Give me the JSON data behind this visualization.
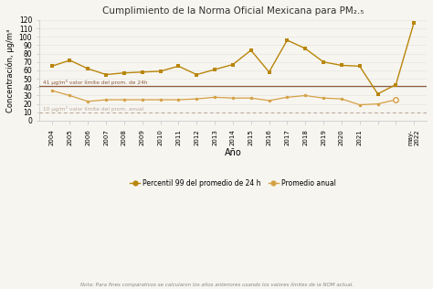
{
  "title": "Cumplimiento de la Norma Oficial Mexicana para PM₂.₅",
  "xlabel": "Año",
  "ylabel": "Concentración, μg/m³",
  "p99_y": [
    65,
    72,
    62,
    55,
    57,
    58,
    59,
    65,
    55,
    61,
    67,
    84,
    58,
    96,
    86,
    70,
    66,
    65,
    32,
    43,
    117
  ],
  "annual_y": [
    36,
    30,
    23,
    25,
    25,
    25,
    25,
    25,
    26,
    28,
    27,
    27,
    24,
    28,
    30,
    27,
    26,
    19,
    20,
    25
  ],
  "p99_x": [
    0,
    1,
    2,
    3,
    4,
    5,
    6,
    7,
    8,
    9,
    10,
    11,
    12,
    13,
    14,
    15,
    16,
    17,
    18,
    19,
    20
  ],
  "annual_x": [
    0,
    1,
    2,
    3,
    4,
    5,
    6,
    7,
    8,
    9,
    10,
    11,
    12,
    13,
    14,
    15,
    16,
    17,
    18,
    19
  ],
  "tick_positions": [
    0,
    1,
    2,
    3,
    4,
    5,
    6,
    7,
    8,
    9,
    10,
    11,
    12,
    13,
    14,
    15,
    16,
    17,
    18,
    19,
    20
  ],
  "tick_labels": [
    "2004",
    "2005",
    "2006",
    "2007",
    "2008",
    "2009",
    "2010",
    "2011",
    "2012",
    "2013",
    "2014",
    "2015",
    "2016",
    "2017",
    "2018",
    "2019",
    "2020",
    "2021",
    "",
    "",
    "may-\n2022"
  ],
  "limit_24h": 41,
  "limit_annual": 10,
  "color_p99": "#b8860b",
  "color_annual": "#d4a044",
  "color_limit_24h": "#8b5c3e",
  "color_limit_annual": "#b8a898",
  "label_p99": "Percentil 99 del promedio de 24 h",
  "label_annual": "Promedio anual",
  "note": "Nota: Para fines comparativos se calcularon los años anteriores usando los valores límites de la NOM actual.",
  "ylim": [
    0,
    120
  ],
  "yticks": [
    0,
    10,
    20,
    30,
    40,
    50,
    60,
    70,
    80,
    90,
    100,
    110,
    120
  ],
  "bg_color": "#f7f5f0"
}
